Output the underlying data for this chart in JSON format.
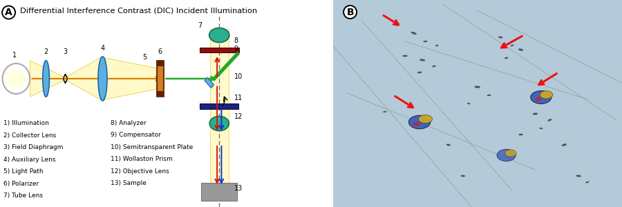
{
  "title_main": "Differential Interference Contrast (DIC) Incident Illumination",
  "bg_color": "#ffffff",
  "legend_left": [
    "1) Illumination",
    "2) Collector Lens",
    "3) Field Diaphragm",
    "4) Auxiliary Lens",
    "5) Light Path",
    "6) Polarizer",
    "7) Tube Lens"
  ],
  "legend_right": [
    "8) Analyzer",
    "9) Compensator",
    "10) Semitransparent Plate",
    "11) Wollaston Prism",
    "12) Objective Lens",
    "13) Sample"
  ],
  "beam_fill": "#fff9c4",
  "beam_edge": "#e8c830",
  "lens_blue": "#5bb0e0",
  "lens_blue_edge": "#1a66aa",
  "lens_teal": "#2ab090",
  "lens_teal_edge": "#187055",
  "polarizer_orange": "#d08020",
  "polarizer_dark": "#602000",
  "green_line": "#22aa22",
  "red_color": "#dd1111",
  "blue_color": "#1133cc",
  "dark_red_bar": "#8b1010",
  "navy_bar": "#1a237e",
  "sample_gray": "#999999",
  "dashed_color": "#666666",
  "micro_bg": "#b0c8d8"
}
